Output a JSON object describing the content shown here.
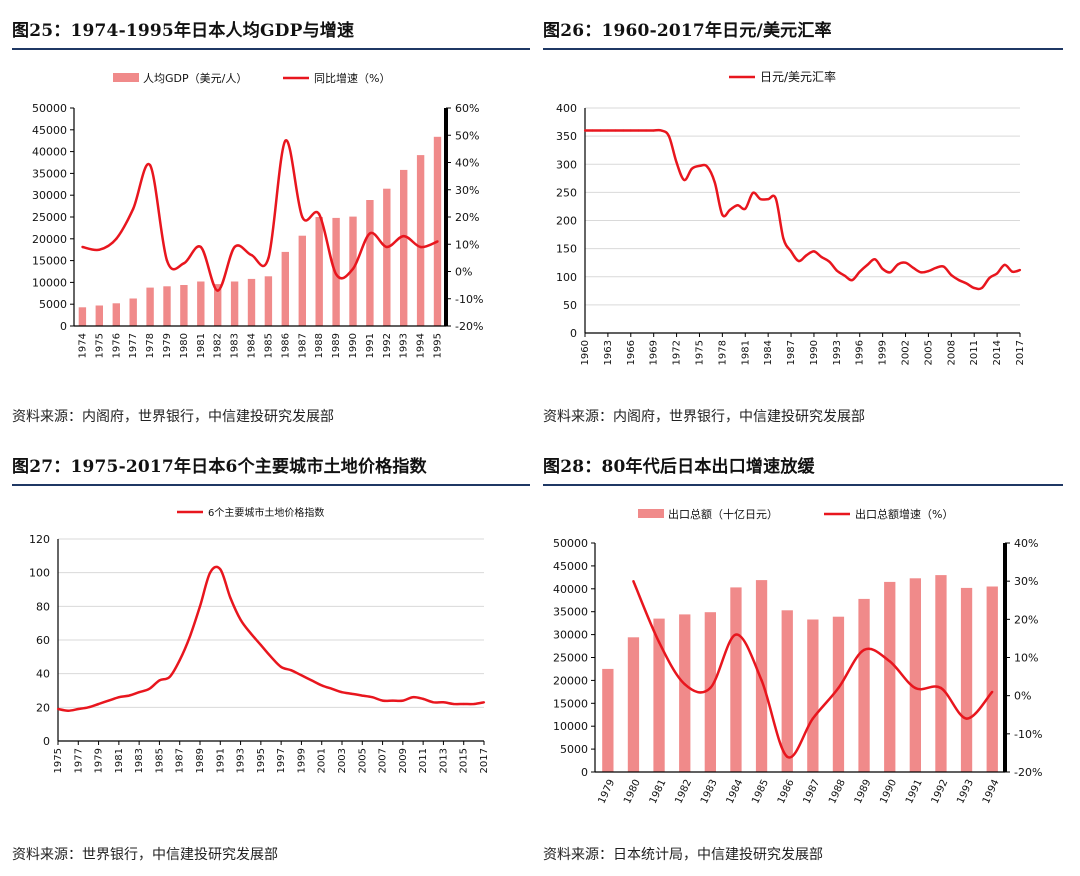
{
  "panels": {
    "fig25": {
      "title": "图25：1974-1995年日本人均GDP与增速",
      "source": "资料来源：内阁府，世界银行，中信建投研究发展部"
    },
    "fig26": {
      "title": "图26：1960-2017年日元/美元汇率",
      "source": "资料来源：内阁府，世界银行，中信建投研究发展部"
    },
    "fig27": {
      "title": "图27：1975-2017年日本6个主要城市土地价格指数",
      "source": "资料来源：世界银行，中信建投研究发展部"
    },
    "fig28": {
      "title": "图28：80年代后日本出口增速放缓",
      "source": "资料来源：日本统计局，中信建投研究发展部"
    }
  },
  "colors": {
    "bar": "#f08a8a",
    "line": "#e8161e",
    "axis": "#000000",
    "grid": "#d9d9d9",
    "rule": "#1f3864"
  },
  "chart_data": [
    {
      "id": "fig25",
      "type": "bar+line",
      "title": "1974-1995年日本人均GDP与增速",
      "categories": [
        "1974",
        "1975",
        "1976",
        "1977",
        "1978",
        "1979",
        "1980",
        "1981",
        "1982",
        "1983",
        "1984",
        "1985",
        "1986",
        "1987",
        "1988",
        "1989",
        "1990",
        "1991",
        "1992",
        "1993",
        "1994",
        "1995"
      ],
      "series": [
        {
          "name": "人均GDP（美元/人）",
          "type": "bar",
          "axis": "left",
          "values": [
            4300,
            4700,
            5200,
            6300,
            8800,
            9100,
            9400,
            10200,
            9600,
            10200,
            10800,
            11400,
            17000,
            20700,
            25000,
            24800,
            25100,
            28900,
            31500,
            35800,
            39200,
            43400
          ]
        },
        {
          "name": "同比增速（%）",
          "type": "line",
          "axis": "right",
          "values": [
            9,
            8,
            12,
            23,
            39,
            4,
            3,
            9,
            -7,
            9,
            6,
            5,
            48,
            20,
            21,
            -1,
            1,
            14,
            9,
            13,
            9,
            11
          ]
        }
      ],
      "left_axis": {
        "min": 0,
        "max": 50000,
        "step": 5000,
        "ticks": [
          "0",
          "5000",
          "10000",
          "15000",
          "20000",
          "25000",
          "30000",
          "35000",
          "40000",
          "45000",
          "50000"
        ]
      },
      "right_axis": {
        "min": -20,
        "max": 60,
        "step": 10,
        "ticks": [
          "-20%",
          "-10%",
          "0%",
          "10%",
          "20%",
          "30%",
          "40%",
          "50%",
          "60%"
        ]
      },
      "grid": false,
      "legend_position": "top"
    },
    {
      "id": "fig26",
      "type": "line",
      "title": "1960-2017年日元/美元汇率",
      "x": [
        1960,
        1961,
        1962,
        1963,
        1964,
        1965,
        1966,
        1967,
        1968,
        1969,
        1970,
        1971,
        1972,
        1973,
        1974,
        1975,
        1976,
        1977,
        1978,
        1979,
        1980,
        1981,
        1982,
        1983,
        1984,
        1985,
        1986,
        1987,
        1988,
        1989,
        1990,
        1991,
        1992,
        1993,
        1994,
        1995,
        1996,
        1997,
        1998,
        1999,
        2000,
        2001,
        2002,
        2003,
        2004,
        2005,
        2006,
        2007,
        2008,
        2009,
        2010,
        2011,
        2012,
        2013,
        2014,
        2015,
        2016,
        2017
      ],
      "series": [
        {
          "name": "日元/美元汇率",
          "values": [
            360,
            360,
            360,
            360,
            360,
            360,
            360,
            360,
            360,
            360,
            360,
            350,
            303,
            272,
            292,
            297,
            296,
            268,
            210,
            219,
            227,
            221,
            249,
            238,
            238,
            239,
            168,
            145,
            128,
            138,
            145,
            135,
            127,
            111,
            102,
            94,
            109,
            121,
            131,
            114,
            108,
            122,
            125,
            116,
            108,
            110,
            116,
            118,
            103,
            94,
            88,
            80,
            80,
            98,
            106,
            121,
            109,
            112
          ]
        }
      ],
      "x_ticks": [
        "1960",
        "1963",
        "1966",
        "1969",
        "1972",
        "1975",
        "1978",
        "1981",
        "1984",
        "1987",
        "1990",
        "1993",
        "1996",
        "1999",
        "2002",
        "2005",
        "2008",
        "2011",
        "2014",
        "2017"
      ],
      "ylim": [
        0,
        400
      ],
      "y_ticks": [
        "0",
        "50",
        "100",
        "150",
        "200",
        "250",
        "300",
        "350",
        "400"
      ],
      "grid": true,
      "legend_position": "top"
    },
    {
      "id": "fig27",
      "type": "line",
      "title": "1975-2017年日本6个主要城市土地价格指数",
      "x": [
        1975,
        1976,
        1977,
        1978,
        1979,
        1980,
        1981,
        1982,
        1983,
        1984,
        1985,
        1986,
        1987,
        1988,
        1989,
        1990,
        1991,
        1992,
        1993,
        1994,
        1995,
        1996,
        1997,
        1998,
        1999,
        2000,
        2001,
        2002,
        2003,
        2004,
        2005,
        2006,
        2007,
        2008,
        2009,
        2010,
        2011,
        2012,
        2013,
        2014,
        2015,
        2016,
        2017
      ],
      "series": [
        {
          "name": "6个主要城市土地价格指数",
          "values": [
            19,
            18,
            19,
            20,
            22,
            24,
            26,
            27,
            29,
            31,
            36,
            38,
            48,
            62,
            80,
            100,
            102,
            85,
            72,
            64,
            57,
            50,
            44,
            42,
            39,
            36,
            33,
            31,
            29,
            28,
            27,
            26,
            24,
            24,
            24,
            26,
            25,
            23,
            23,
            22,
            22,
            22,
            23
          ]
        }
      ],
      "x_ticks": [
        "1975",
        "1977",
        "1979",
        "1981",
        "1983",
        "1985",
        "1987",
        "1989",
        "1991",
        "1993",
        "1995",
        "1997",
        "1999",
        "2001",
        "2003",
        "2005",
        "2007",
        "2009",
        "2011",
        "2013",
        "2015",
        "2017"
      ],
      "ylim": [
        0,
        120
      ],
      "y_ticks": [
        "0",
        "20",
        "40",
        "60",
        "80",
        "100",
        "120"
      ],
      "grid": true,
      "legend_position": "top"
    },
    {
      "id": "fig28",
      "type": "bar+line",
      "title": "80年代后日本出口增速放缓",
      "categories": [
        "1979",
        "1980",
        "1981",
        "1982",
        "1983",
        "1984",
        "1985",
        "1986",
        "1987",
        "1988",
        "1989",
        "1990",
        "1991",
        "1992",
        "1993",
        "1994"
      ],
      "series": [
        {
          "name": "出口总额（十亿日元）",
          "type": "bar",
          "axis": "left",
          "values": [
            22500,
            29400,
            33500,
            34400,
            34900,
            40300,
            41900,
            35300,
            33300,
            33900,
            37800,
            41500,
            42300,
            43000,
            40200,
            40500
          ]
        },
        {
          "name": "出口总额增速（%）",
          "type": "line",
          "axis": "right",
          "values": [
            null,
            30,
            14,
            3,
            2,
            16,
            4,
            -16,
            -6,
            2,
            12,
            9,
            2,
            2,
            -6,
            1
          ]
        }
      ],
      "left_axis": {
        "min": 0,
        "max": 50000,
        "step": 5000,
        "ticks": [
          "0",
          "5000",
          "10000",
          "15000",
          "20000",
          "25000",
          "30000",
          "35000",
          "40000",
          "45000",
          "50000"
        ]
      },
      "right_axis": {
        "min": -20,
        "max": 40,
        "step": 10,
        "ticks": [
          "-20%",
          "-10%",
          "0%",
          "10%",
          "20%",
          "30%",
          "40%"
        ]
      },
      "grid": false,
      "legend_position": "top"
    }
  ]
}
